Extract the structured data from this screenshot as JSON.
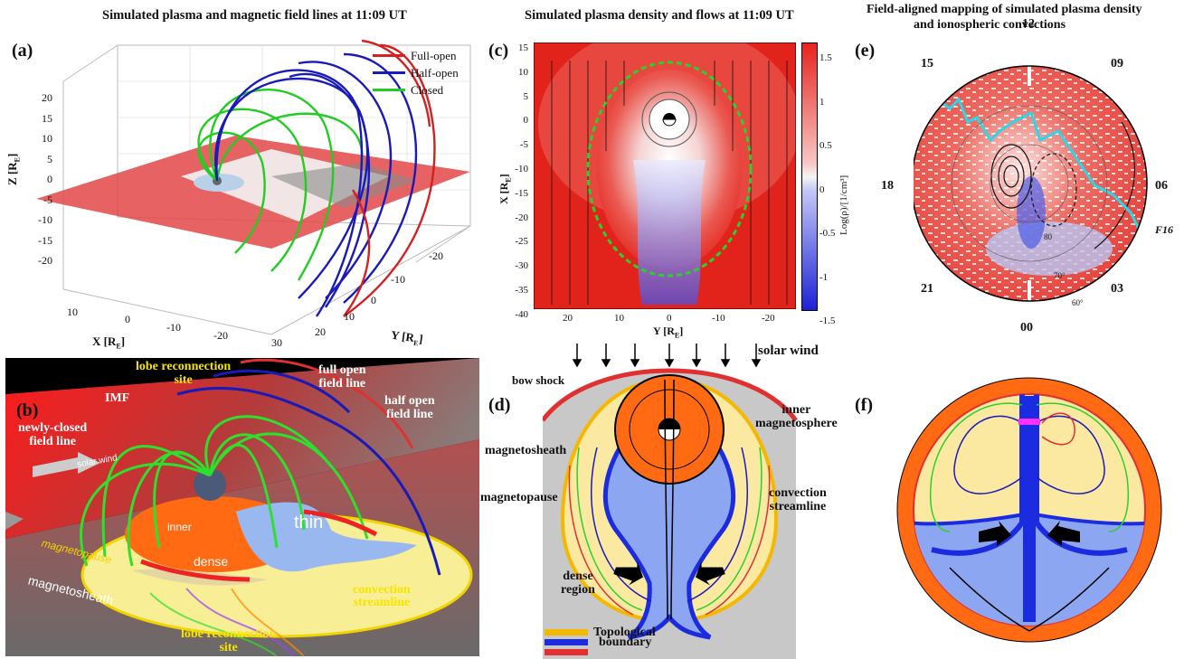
{
  "titles": {
    "left": "Simulated plasma and magnetic field lines at 11:09 UT",
    "middle": "Simulated plasma density and flows at 11:09 UT",
    "right_line1": "Field-aligned mapping of simulated plasma density",
    "right_line2": "and ionospheric convections"
  },
  "panel_letters": {
    "a": "(a)",
    "b": "(b)",
    "c": "(c)",
    "d": "(d)",
    "e": "(e)",
    "f": "(f)"
  },
  "panel_a": {
    "legend": [
      {
        "label": "Full-open",
        "color": "#d42020"
      },
      {
        "label": "Half-open",
        "color": "#1a1ab8"
      },
      {
        "label": "Closed",
        "color": "#22cc22"
      }
    ],
    "z_label": "Z [R",
    "z_label_sub": "E",
    "x_label": "X [R",
    "x_label_sub": "E",
    "y_label": "Y [R",
    "y_label_sub": "E",
    "z_ticks": [
      "20",
      "15",
      "10",
      "5",
      "0",
      "-5",
      "-10",
      "-15",
      "-20"
    ],
    "x_ticks": [
      "10",
      "0",
      "-10",
      "-20",
      "30"
    ],
    "y_ticks": [
      "-20",
      "-10",
      "0",
      "10",
      "20"
    ]
  },
  "panel_b": {
    "labels": {
      "lobe_top": "lobe reconnection",
      "lobe_top2": "site",
      "full_open": "full open",
      "full_open2": "field line",
      "imf": "IMF",
      "half_open": "half open",
      "half_open2": "field line",
      "newly_closed": "newly-closed",
      "newly_closed2": "field line",
      "solar_wind": "solar wind",
      "inner": "inner",
      "thin": "thin",
      "dense": "dense",
      "magnetopause": "magnetopause",
      "magnetosheath": "magnetosheath",
      "convection": "convection",
      "convection2": "streamline",
      "lobe_bottom": "lobe reconnection",
      "lobe_bottom2": "site"
    }
  },
  "panel_c": {
    "y_axis_label": "X [R",
    "x_axis_label": "Y [R",
    "axis_sub": "E",
    "y_ticks": [
      "15",
      "10",
      "5",
      "0",
      "-5",
      "-10",
      "-15",
      "-20",
      "-25",
      "-30",
      "-35",
      "-40"
    ],
    "x_ticks": [
      "20",
      "10",
      "0",
      "-10",
      "-20"
    ],
    "colorbar_ticks": [
      "1.5",
      "1",
      "0.5",
      "0",
      "-0.5",
      "-1",
      "-1.5"
    ],
    "colorbar_label": "Log(ρ)/[1/cm³]",
    "colors": {
      "high": "#e8231f",
      "mid": "#f4f4f4",
      "low": "#1c22d6"
    }
  },
  "panel_d": {
    "labels": {
      "solar_wind": "solar wind",
      "bow_shock": "bow shock",
      "inner": "inner",
      "inner2": "magnetosphere",
      "magnetosheath": "magnetosheath",
      "magnetopause": "magnetopause",
      "convection": "convection",
      "convection2": "streamline",
      "dense": "dense",
      "dense2": "region"
    },
    "legend": [
      {
        "label": "Topological",
        "color": "#f5b800"
      },
      {
        "label": "boundary",
        "color": "#1a2be0"
      },
      {
        "label": "",
        "color": "#e03030"
      }
    ]
  },
  "panel_e": {
    "mlt_labels": [
      "12",
      "09",
      "06",
      "03",
      "00",
      "21",
      "18",
      "15"
    ],
    "lat_labels": [
      "60°",
      "70°",
      "80"
    ],
    "sat_label": "F16"
  }
}
